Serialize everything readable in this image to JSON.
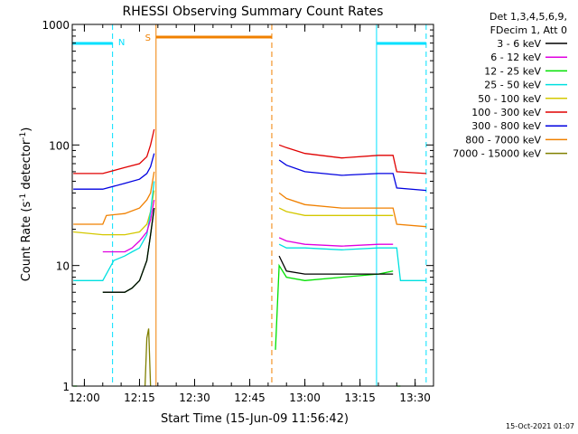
{
  "chart_data": {
    "type": "line",
    "title": "RHESSI Observing Summary Count Rates",
    "xlabel": "Start Time (15-Jun-09 11:56:42)",
    "ylabel_main": "Count Rate (s",
    "ylabel_sup1": "-1",
    "ylabel_mid": " detector",
    "ylabel_sup2": "-1",
    "ylabel_end": ")",
    "yscale": "log",
    "ylim": [
      1,
      1000
    ],
    "xlim": [
      "11:56:42",
      "13:35:00"
    ],
    "xticks": [
      "12:00",
      "12:15",
      "12:30",
      "12:45",
      "13:00",
      "13:15",
      "13:30"
    ],
    "yticks": [
      "1",
      "10",
      "100",
      "1000"
    ],
    "legend": {
      "header1": "Det 1,3,4,5,6,9,",
      "header2": "FDecim 1, Att 0",
      "entries": [
        {
          "label": "3 - 6 keV",
          "color": "#000000"
        },
        {
          "label": "6 - 12 keV",
          "color": "#e000e0"
        },
        {
          "label": "12 - 25 keV",
          "color": "#00e000"
        },
        {
          "label": "25 - 50 keV",
          "color": "#00e0e0"
        },
        {
          "label": "50 - 100 keV",
          "color": "#d4c800"
        },
        {
          "label": "100 - 300 keV",
          "color": "#e00000"
        },
        {
          "label": "300 - 800 keV",
          "color": "#0000e0"
        },
        {
          "label": "800 - 7000 keV",
          "color": "#f08000"
        },
        {
          "label": "7000 - 15000 keV",
          "color": "#808000"
        }
      ]
    },
    "flags": [
      {
        "label": "N",
        "color": "#00e0ff"
      },
      {
        "label": "S",
        "color": "#f08000"
      }
    ],
    "night_intervals": [
      {
        "start": "11:56:42",
        "end": "12:07:40",
        "color": "#00e0ff"
      },
      {
        "start": "13:19:30",
        "end": "13:33:00",
        "color": "#00e0ff"
      }
    ],
    "saa_interval": {
      "start": "12:19:30",
      "end": "12:51:00",
      "color": "#f08000"
    },
    "series": [
      {
        "name": "3 - 6 keV",
        "color": "#000000",
        "segments": [
          {
            "x": [
              "12:05",
              "12:11",
              "12:13",
              "12:15",
              "12:17",
              "12:18",
              "12:19"
            ],
            "y": [
              6,
              6,
              6.5,
              7.5,
              11,
              18,
              30
            ]
          },
          {
            "x": [
              "12:53",
              "12:55",
              "13:00",
              "13:10",
              "13:20",
              "13:24"
            ],
            "y": [
              12,
              9,
              8.5,
              8.5,
              8.5,
              8.5
            ]
          }
        ]
      },
      {
        "name": "6 - 12 keV",
        "color": "#e000e0",
        "segments": [
          {
            "x": [
              "12:05",
              "12:11",
              "12:13",
              "12:15",
              "12:17",
              "12:18",
              "12:19"
            ],
            "y": [
              13,
              13,
              14,
              16,
              19,
              24,
              35
            ]
          },
          {
            "x": [
              "12:53",
              "12:55",
              "13:00",
              "13:10",
              "13:20",
              "13:24"
            ],
            "y": [
              17,
              16,
              15,
              14.5,
              15,
              15
            ]
          }
        ]
      },
      {
        "name": "12 - 25 keV",
        "color": "#00e000",
        "segments": [
          {
            "x": [
              "11:57",
              "11:58"
            ],
            "y": [
              1,
              1
            ]
          },
          {
            "x": [
              "12:05",
              "12:11",
              "12:13",
              "12:15",
              "12:17",
              "12:18",
              "12:19"
            ],
            "y": [
              6,
              6,
              6.5,
              7.5,
              11,
              18,
              30
            ]
          },
          {
            "x": [
              "12:52",
              "12:53",
              "12:55",
              "13:00",
              "13:10",
              "13:20",
              "13:24"
            ],
            "y": [
              2,
              10,
              8,
              7.5,
              8,
              8.5,
              9
            ]
          },
          {
            "x": [
              "13:25",
              "13:26"
            ],
            "y": [
              1,
              1
            ]
          }
        ]
      },
      {
        "name": "25 - 50 keV",
        "color": "#00e0e0",
        "segments": [
          {
            "x": [
              "11:57",
              "12:05",
              "12:08",
              "12:11",
              "12:13",
              "12:15",
              "12:17",
              "12:18",
              "12:19"
            ],
            "y": [
              7.5,
              7.5,
              11,
              12,
              13,
              14,
              18,
              28,
              50
            ]
          },
          {
            "x": [
              "12:53",
              "12:55",
              "13:00",
              "13:10",
              "13:20",
              "13:25",
              "13:26",
              "13:33"
            ],
            "y": [
              15,
              14,
              14,
              13.5,
              14,
              14,
              7.5,
              7.5
            ]
          }
        ]
      },
      {
        "name": "50 - 100 keV",
        "color": "#d4c800",
        "segments": [
          {
            "x": [
              "11:57",
              "12:05",
              "12:11",
              "12:15",
              "12:17",
              "12:18",
              "12:19"
            ],
            "y": [
              19,
              18,
              18,
              19,
              22,
              28,
              42
            ]
          },
          {
            "x": [
              "12:53",
              "12:55",
              "13:00",
              "13:10",
              "13:20",
              "13:24"
            ],
            "y": [
              30,
              28,
              26,
              26,
              26,
              26
            ]
          }
        ]
      },
      {
        "name": "100 - 300 keV",
        "color": "#e00000",
        "segments": [
          {
            "x": [
              "11:57",
              "12:05",
              "12:11",
              "12:15",
              "12:17",
              "12:18",
              "12:19"
            ],
            "y": [
              58,
              58,
              65,
              70,
              80,
              100,
              135
            ]
          },
          {
            "x": [
              "12:53",
              "12:55",
              "13:00",
              "13:10",
              "13:20",
              "13:24",
              "13:25",
              "13:33"
            ],
            "y": [
              100,
              95,
              85,
              78,
              82,
              82,
              60,
              58
            ]
          }
        ]
      },
      {
        "name": "300 - 800 keV",
        "color": "#0000e0",
        "segments": [
          {
            "x": [
              "11:57",
              "12:05",
              "12:11",
              "12:15",
              "12:17",
              "12:18",
              "12:19"
            ],
            "y": [
              43,
              43,
              48,
              52,
              58,
              66,
              85
            ]
          },
          {
            "x": [
              "12:53",
              "12:55",
              "13:00",
              "13:10",
              "13:20",
              "13:24",
              "13:25",
              "13:33"
            ],
            "y": [
              75,
              68,
              60,
              56,
              58,
              58,
              44,
              42
            ]
          }
        ]
      },
      {
        "name": "800 - 7000 keV",
        "color": "#f08000",
        "segments": [
          {
            "x": [
              "11:57",
              "12:05",
              "12:06",
              "12:11",
              "12:15",
              "12:17",
              "12:18",
              "12:19"
            ],
            "y": [
              22,
              22,
              26,
              27,
              30,
              35,
              40,
              60
            ]
          },
          {
            "x": [
              "12:53",
              "12:55",
              "13:00",
              "13:10",
              "13:20",
              "13:24",
              "13:25",
              "13:33"
            ],
            "y": [
              40,
              36,
              32,
              30,
              30,
              30,
              22,
              21
            ]
          }
        ]
      },
      {
        "name": "7000 - 15000 keV",
        "color": "#808000",
        "segments": [
          {
            "x": [
              "12:16:30",
              "12:17",
              "12:17:30",
              "12:18"
            ],
            "y": [
              1,
              2.5,
              3,
              1
            ]
          }
        ]
      }
    ]
  },
  "footer": {
    "timestamp": "15-Oct-2021 01:07"
  }
}
